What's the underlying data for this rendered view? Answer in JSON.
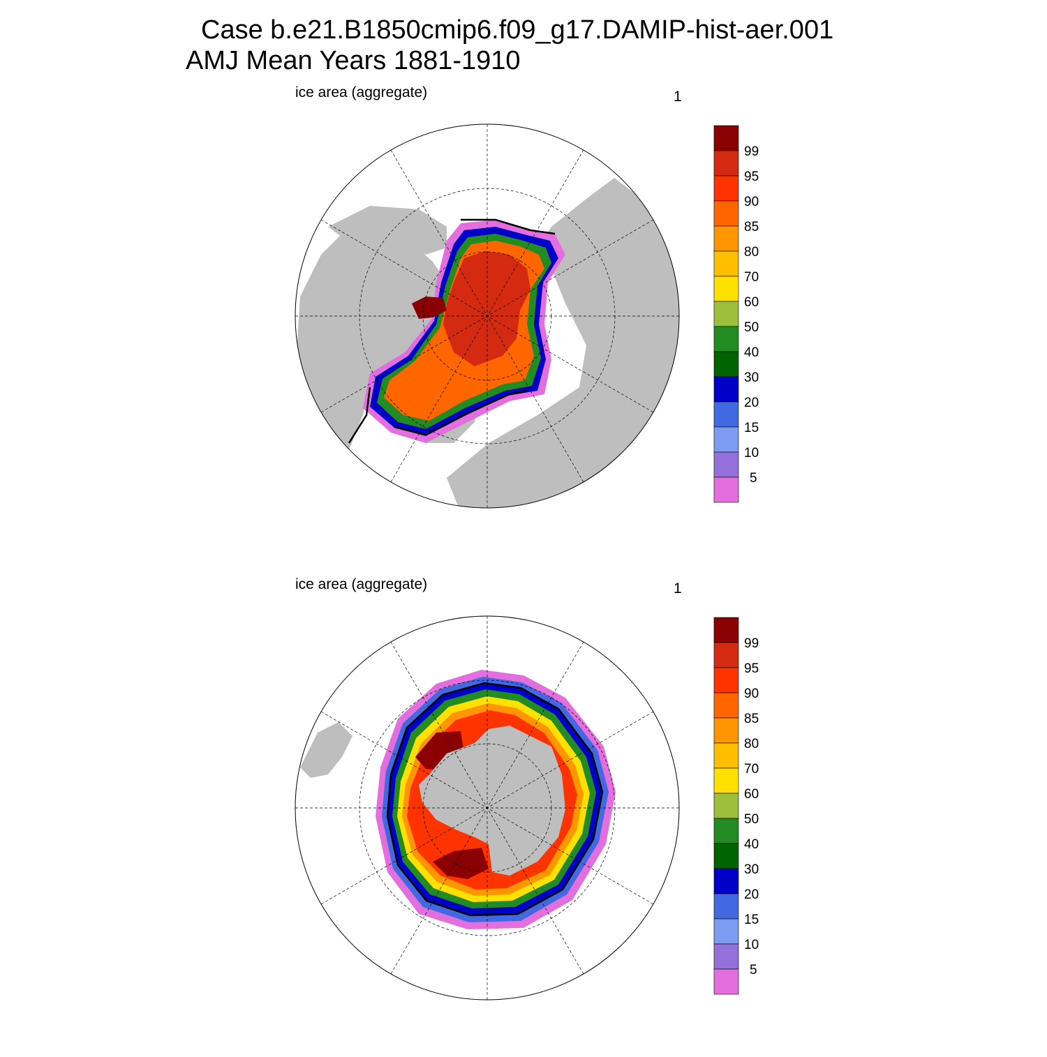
{
  "figure": {
    "title_line1": "Case b.e21.B1850cmip6.f09_g17.DAMIP-hist-aer.001",
    "title_line2": "AMJ Mean   Years 1881-1910"
  },
  "panels": [
    {
      "id": "nh",
      "hemisphere": "north",
      "left_label": "ice area  (aggregate)",
      "right_label": "1"
    },
    {
      "id": "sh",
      "hemisphere": "south",
      "left_label": "ice area  (aggregate)",
      "right_label": "1"
    }
  ],
  "colorbar": {
    "levels": [
      "99",
      "95",
      "90",
      "85",
      "80",
      "70",
      "60",
      "50",
      "40",
      "30",
      "20",
      "15",
      "10",
      "5"
    ],
    "colors": [
      "#8b0000",
      "#d42a12",
      "#ff3300",
      "#ff6600",
      "#ff9500",
      "#ffbf00",
      "#ffe000",
      "#9bbf3a",
      "#228b22",
      "#006400",
      "#0000c8",
      "#4169e1",
      "#7b9cf0",
      "#9370db",
      "#e36fdf"
    ]
  },
  "colors": {
    "land": "#bebebe",
    "ocean": "#ffffff",
    "contour": "#000000"
  }
}
